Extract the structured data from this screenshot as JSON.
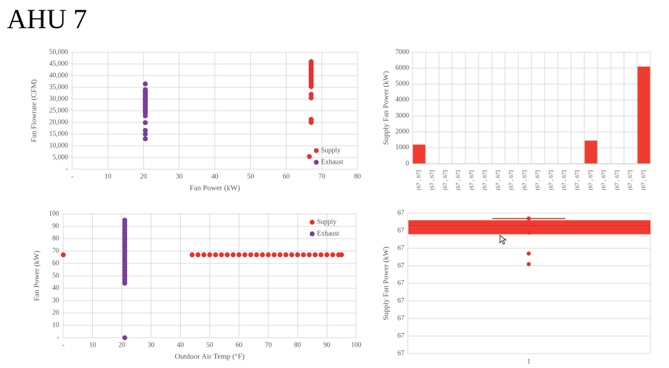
{
  "page": {
    "title": "AHU 7"
  },
  "colors": {
    "supply": "#e8312f",
    "exhaust": "#7a3f9a",
    "bar": "#f03c30",
    "grid": "#d9d9d9"
  },
  "chart_data": [
    {
      "id": "flowrate-vs-power",
      "type": "scatter",
      "xlabel": "Fan Power (kW)",
      "ylabel": "Fan Flowrate (CFM)",
      "xlim": [
        0,
        80
      ],
      "ylim": [
        0,
        50000
      ],
      "x_ticks": [
        "-",
        "10",
        "20",
        "30",
        "40",
        "50",
        "60",
        "70",
        "80"
      ],
      "y_ticks": [
        "-",
        "5,000",
        "10,000",
        "15,000",
        "20,000",
        "25,000",
        "30,000",
        "35,000",
        "40,000",
        "45,000",
        "50,000"
      ],
      "legend": {
        "position": "bottom-right",
        "entries": [
          "Supply",
          "Exhaust"
        ]
      },
      "series": [
        {
          "name": "Supply",
          "color": "#e8312f",
          "points": [
            [
              67,
              46000
            ],
            [
              67,
              45300
            ],
            [
              67,
              44600
            ],
            [
              67,
              44000
            ],
            [
              67,
              43300
            ],
            [
              67,
              42600
            ],
            [
              67,
              42000
            ],
            [
              67,
              41300
            ],
            [
              67,
              40700
            ],
            [
              67,
              40000
            ],
            [
              67,
              39300
            ],
            [
              67,
              38700
            ],
            [
              67,
              38000
            ],
            [
              67,
              37300
            ],
            [
              67,
              36600
            ],
            [
              67,
              36000
            ],
            [
              67,
              35300
            ],
            [
              67,
              32000
            ],
            [
              67,
              30500
            ],
            [
              67,
              21300
            ],
            [
              67,
              20500
            ],
            [
              67,
              20000
            ],
            [
              66.5,
              5400
            ]
          ]
        },
        {
          "name": "Exhaust",
          "color": "#7a3f9a",
          "points": [
            [
              20.5,
              36500
            ],
            [
              20.5,
              34000
            ],
            [
              20.5,
              33500
            ],
            [
              20.5,
              33000
            ],
            [
              20.5,
              32500
            ],
            [
              20.5,
              32000
            ],
            [
              20.5,
              31500
            ],
            [
              20.5,
              31000
            ],
            [
              20.5,
              30500
            ],
            [
              20.5,
              30000
            ],
            [
              20.5,
              29500
            ],
            [
              20.5,
              29000
            ],
            [
              20.5,
              28500
            ],
            [
              20.5,
              28000
            ],
            [
              20.5,
              27500
            ],
            [
              20.5,
              27000
            ],
            [
              20.5,
              26500
            ],
            [
              20.5,
              26000
            ],
            [
              20.5,
              25500
            ],
            [
              20.5,
              25000
            ],
            [
              20.5,
              24500
            ],
            [
              20.5,
              24000
            ],
            [
              20.5,
              22800
            ],
            [
              20.5,
              19900
            ],
            [
              20.5,
              16600
            ],
            [
              20.5,
              15000
            ],
            [
              20.5,
              13000
            ]
          ]
        }
      ]
    },
    {
      "id": "supply-power-bars",
      "type": "bar",
      "ylabel": "Supply Fan Power (kW)",
      "ylim": [
        0,
        7000
      ],
      "y_ticks": [
        "0",
        "1000",
        "2000",
        "3000",
        "4000",
        "5000",
        "6000",
        "7000"
      ],
      "categories": [
        "(67 , 67]",
        "(67 , 67]",
        "(67 , 67]",
        "(67 , 67]",
        "(67 , 67]",
        "(67 , 67]",
        "(67 , 67]",
        "(67 , 67]",
        "(67 , 67]",
        "(67 , 67]",
        "(67 , 67]",
        "(67 , 67]",
        "(67 , 67]",
        "(67 , 67]",
        "(67 , 67]",
        "(67 , 67]",
        "(67 , 67]",
        "(67 , 67]"
      ],
      "values": [
        1200,
        0,
        0,
        0,
        0,
        0,
        0,
        0,
        0,
        0,
        0,
        0,
        0,
        1450,
        0,
        0,
        0,
        6100
      ]
    },
    {
      "id": "power-vs-oat",
      "type": "scatter",
      "xlabel": "Outdoor Air Temp (°F)",
      "ylabel": "Fan Power (kW)",
      "xlim": [
        0,
        100
      ],
      "ylim": [
        0,
        100
      ],
      "x_ticks": [
        "-",
        "10",
        "20",
        "30",
        "40",
        "50",
        "60",
        "70",
        "80",
        "90",
        "100"
      ],
      "y_ticks": [
        "-",
        "10",
        "20",
        "30",
        "40",
        "50",
        "60",
        "70",
        "80",
        "90",
        "100"
      ],
      "legend": {
        "position": "top-right",
        "entries": [
          "Supply",
          "Exhaust"
        ]
      },
      "series": [
        {
          "name": "Supply",
          "color": "#e8312f",
          "points": [
            [
              0,
              67
            ],
            [
              44,
              67
            ],
            [
              46,
              67
            ],
            [
              48,
              67
            ],
            [
              50,
              67
            ],
            [
              52,
              67
            ],
            [
              54,
              67
            ],
            [
              56,
              67
            ],
            [
              58,
              67
            ],
            [
              60,
              67
            ],
            [
              62,
              67
            ],
            [
              64,
              67
            ],
            [
              66,
              67
            ],
            [
              68,
              67
            ],
            [
              70,
              67
            ],
            [
              72,
              67
            ],
            [
              74,
              67
            ],
            [
              76,
              67
            ],
            [
              78,
              67
            ],
            [
              80,
              67
            ],
            [
              82,
              67
            ],
            [
              84,
              67
            ],
            [
              86,
              67
            ],
            [
              88,
              67
            ],
            [
              90,
              67
            ],
            [
              92,
              67
            ],
            [
              94,
              67
            ],
            [
              95,
              67
            ]
          ]
        },
        {
          "name": "Exhaust",
          "color": "#7a3f9a",
          "points": [
            [
              21,
              95
            ],
            [
              21,
              93
            ],
            [
              21,
              91
            ],
            [
              21,
              89
            ],
            [
              21,
              87
            ],
            [
              21,
              85
            ],
            [
              21,
              83
            ],
            [
              21,
              81
            ],
            [
              21,
              79
            ],
            [
              21,
              77
            ],
            [
              21,
              75
            ],
            [
              21,
              73
            ],
            [
              21,
              71
            ],
            [
              21,
              69
            ],
            [
              21,
              67
            ],
            [
              21,
              65
            ],
            [
              21,
              63
            ],
            [
              21,
              61
            ],
            [
              21,
              59
            ],
            [
              21,
              57
            ],
            [
              21,
              55
            ],
            [
              21,
              53
            ],
            [
              21,
              51
            ],
            [
              21,
              49
            ],
            [
              21,
              47
            ],
            [
              21,
              45
            ],
            [
              21,
              44
            ],
            [
              21,
              0
            ]
          ]
        }
      ]
    },
    {
      "id": "supply-power-box",
      "type": "box",
      "ylabel": "Supply Fan Power (kW)",
      "categories": [
        "1"
      ],
      "y_ticks": [
        "67",
        "67",
        "67",
        "67",
        "67",
        "67",
        "67",
        "67",
        "67"
      ],
      "ylim": [
        66.9935,
        67.0015
      ],
      "box": {
        "q1": 67.0003,
        "q3": 67.0011,
        "median": 67.0008,
        "whisker_high": 67.0012,
        "whisker_low": 67.0003
      },
      "outliers": [
        66.9992,
        66.9986,
        67.0012,
        67.0004
      ]
    }
  ]
}
